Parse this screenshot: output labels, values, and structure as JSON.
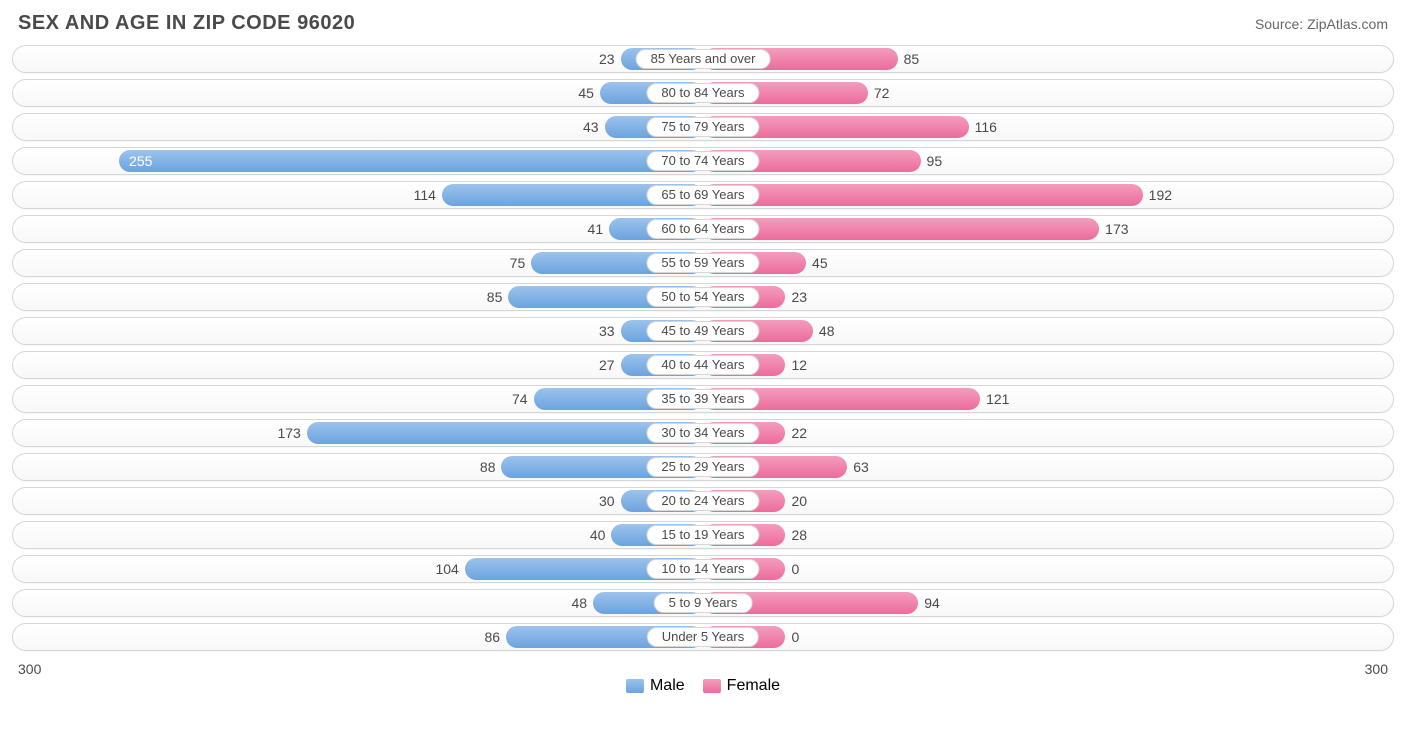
{
  "title": "SEX AND AGE IN ZIP CODE 96020",
  "source": "Source: ZipAtlas.com",
  "chart": {
    "type": "diverging-bar",
    "axis_max": 300,
    "axis_left_label": "300",
    "axis_right_label": "300",
    "male_color_light": "#9bc3ec",
    "male_color_dark": "#6ca3de",
    "female_color_light": "#f39dbd",
    "female_color_dark": "#ed6b9c",
    "track_border_color": "#d6d6d6",
    "text_color": "#4a4a4a",
    "background_color": "#ffffff",
    "legend": {
      "male": "Male",
      "female": "Female"
    },
    "rows": [
      {
        "label": "85 Years and over",
        "male": 23,
        "female": 85
      },
      {
        "label": "80 to 84 Years",
        "male": 45,
        "female": 72
      },
      {
        "label": "75 to 79 Years",
        "male": 43,
        "female": 116
      },
      {
        "label": "70 to 74 Years",
        "male": 255,
        "female": 95
      },
      {
        "label": "65 to 69 Years",
        "male": 114,
        "female": 192
      },
      {
        "label": "60 to 64 Years",
        "male": 41,
        "female": 173
      },
      {
        "label": "55 to 59 Years",
        "male": 75,
        "female": 45
      },
      {
        "label": "50 to 54 Years",
        "male": 85,
        "female": 23
      },
      {
        "label": "45 to 49 Years",
        "male": 33,
        "female": 48
      },
      {
        "label": "40 to 44 Years",
        "male": 27,
        "female": 12
      },
      {
        "label": "35 to 39 Years",
        "male": 74,
        "female": 121
      },
      {
        "label": "30 to 34 Years",
        "male": 173,
        "female": 22
      },
      {
        "label": "25 to 29 Years",
        "male": 88,
        "female": 63
      },
      {
        "label": "20 to 24 Years",
        "male": 30,
        "female": 20
      },
      {
        "label": "15 to 19 Years",
        "male": 40,
        "female": 28
      },
      {
        "label": "10 to 14 Years",
        "male": 104,
        "female": 0
      },
      {
        "label": "5 to 9 Years",
        "male": 48,
        "female": 94
      },
      {
        "label": "Under 5 Years",
        "male": 86,
        "female": 0
      }
    ]
  }
}
